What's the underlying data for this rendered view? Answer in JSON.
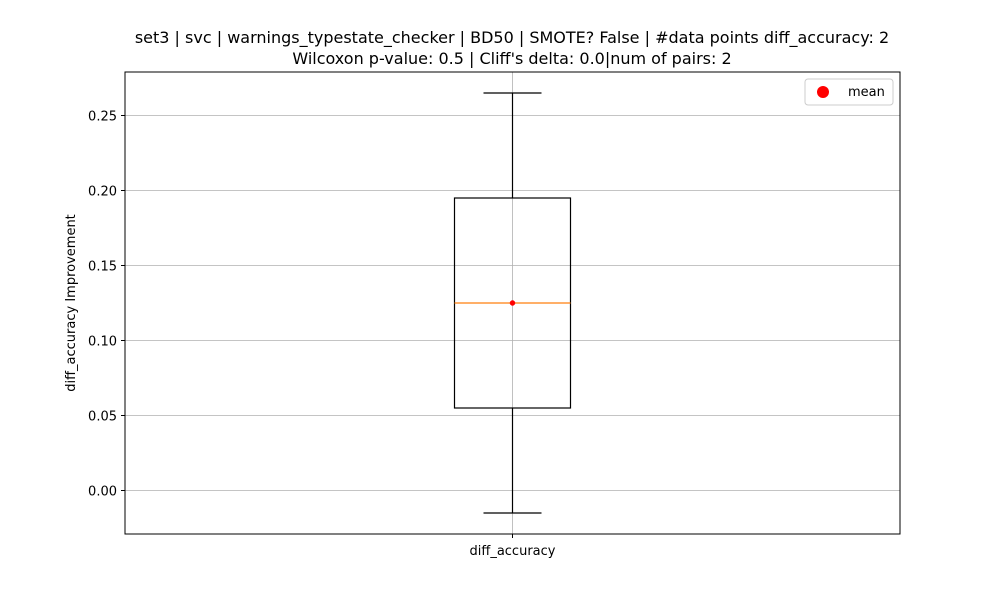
{
  "chart_data": {
    "type": "box",
    "title_line1": "set3 | svc | warnings_typestate_checker | BD50 | SMOTE? False | #data points diff_accuracy: 2",
    "title_line2": "Wilcoxon p-value: 0.5 | Cliff's delta: 0.0|num of pairs: 2",
    "xlabel": "",
    "ylabel": "diff_accuracy Improvement",
    "categories": [
      "diff_accuracy"
    ],
    "ylim": [
      -0.029,
      0.279
    ],
    "yticks": [
      0.0,
      0.05,
      0.1,
      0.15,
      0.2,
      0.25
    ],
    "ytick_labels": [
      "0.00",
      "0.05",
      "0.10",
      "0.15",
      "0.20",
      "0.25"
    ],
    "grid": true,
    "box": {
      "whisker_low": -0.015,
      "q1": 0.055,
      "median": 0.125,
      "q3": 0.195,
      "whisker_high": 0.265,
      "mean": 0.125
    },
    "legend": {
      "placement": "top-right",
      "entries": [
        {
          "label": "mean",
          "color": "#ff0000",
          "marker": "circle"
        }
      ]
    },
    "colors": {
      "box": "#000000",
      "median": "#ff7f0e",
      "mean": "#ff0000",
      "grid": "#b0b0b0"
    }
  }
}
